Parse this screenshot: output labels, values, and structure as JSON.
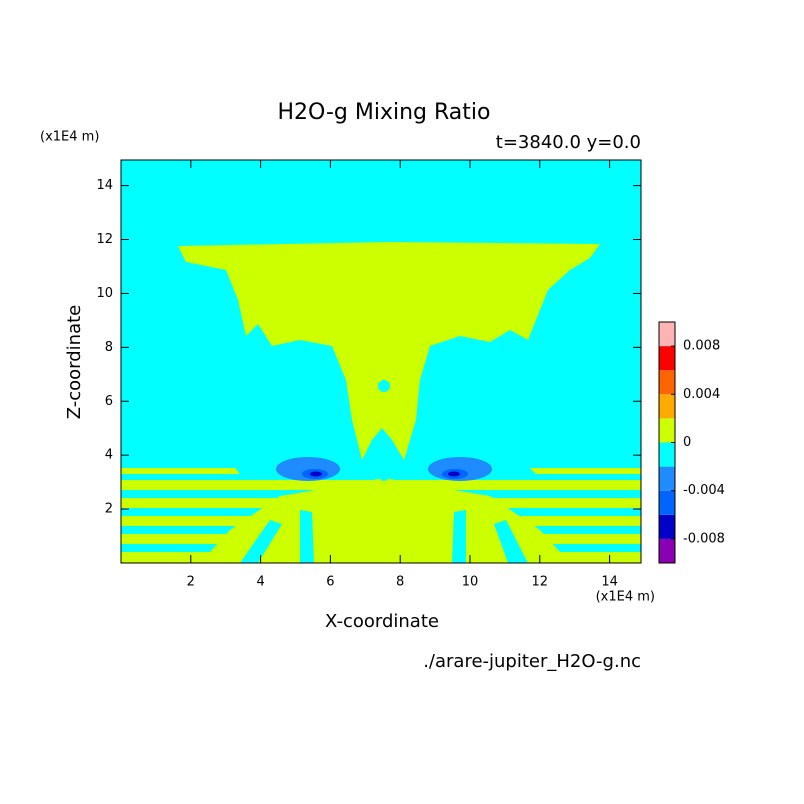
{
  "chart_data": {
    "type": "contour",
    "title": "H2O-g Mixing Ratio",
    "subtitle": "t=3840.0 y=0.0",
    "x_label": "X-coordinate",
    "y_label": "Z-coordinate",
    "x_unit": "(x1E4 m)",
    "y_unit": "(x1E4 m)",
    "source": "./arare-jupiter_H2O-g.nc",
    "xlim": [
      0,
      14.9
    ],
    "ylim": [
      0,
      14.95
    ],
    "xticks": [
      2,
      4,
      6,
      8,
      10,
      12,
      14
    ],
    "yticks": [
      2,
      4,
      6,
      8,
      10,
      12,
      14
    ],
    "colorbar": {
      "levels": [
        -0.01,
        -0.008,
        -0.006,
        -0.004,
        -0.002,
        0,
        0.002,
        0.004,
        0.006,
        0.008,
        0.01
      ],
      "colors": [
        "#8c00b4",
        "#0000c8",
        "#0064ff",
        "#1e8cff",
        "#00ffff",
        "#ccff00",
        "#ffaa00",
        "#ff6400",
        "#ff0000",
        "#ffb4b4"
      ],
      "ticks": [
        -0.008,
        -0.004,
        0,
        0.004,
        0.008
      ]
    }
  }
}
